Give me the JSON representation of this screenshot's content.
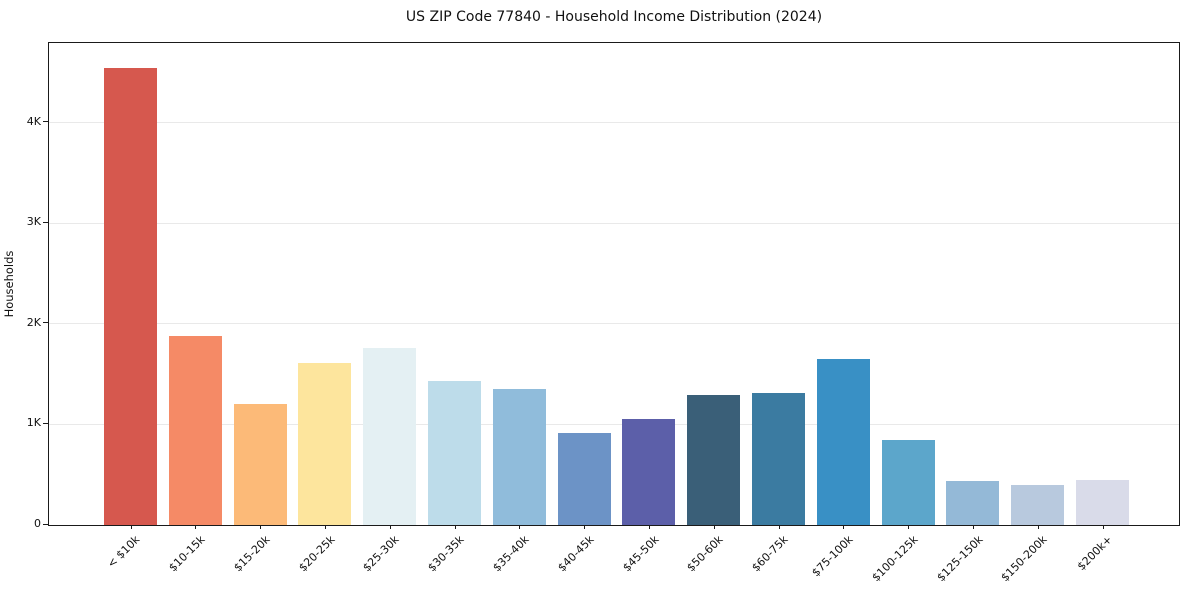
{
  "chart_data": {
    "type": "bar",
    "title": "US ZIP Code 77840 - Household Income Distribution (2024)",
    "xlabel": "",
    "ylabel": "Households",
    "categories": [
      "< $10k",
      "$10-15k",
      "$15-20k",
      "$20-25k",
      "$25-30k",
      "$30-35k",
      "$35-40k",
      "$40-45k",
      "$45-50k",
      "$50-60k",
      "$60-75k",
      "$75-100k",
      "$100-125k",
      "$125-150k",
      "$150-200k",
      "$200k+"
    ],
    "values": [
      4540,
      1880,
      1200,
      1610,
      1760,
      1430,
      1350,
      920,
      1050,
      1290,
      1310,
      1650,
      850,
      440,
      400,
      450
    ],
    "bar_colors": [
      "#d6584e",
      "#f58a66",
      "#fcba78",
      "#fde59d",
      "#e4f0f3",
      "#bddcea",
      "#90bcdb",
      "#6c93c6",
      "#5c5fa9",
      "#3a5f78",
      "#3b7ba1",
      "#3990c5",
      "#5ca6cb",
      "#94b9d7",
      "#b8c9de",
      "#d9dbe9"
    ],
    "ytick_values": [
      0,
      1000,
      2000,
      3000,
      4000
    ],
    "ytick_labels": [
      "0",
      "1K",
      "2K",
      "3K",
      "4K"
    ],
    "ylim": [
      0,
      4792
    ],
    "grid": "horizontal-only",
    "legend": "none",
    "background_color": "#ffffff",
    "grid_color": "#e9e9e9",
    "spine_color": "#1a1a1a"
  }
}
